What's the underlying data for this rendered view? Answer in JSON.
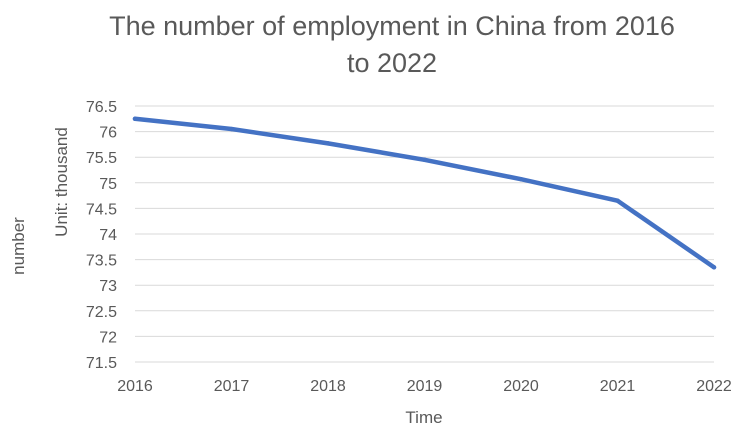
{
  "chart_data": {
    "type": "line",
    "title": "The number of employment in China from 2016 to 2022",
    "title_lines": [
      "The number of employment in China from 2016",
      "to 2022"
    ],
    "xlabel": "Time",
    "ylabel": "Unit: thousand",
    "side_label": "number",
    "categories": [
      "2016",
      "2017",
      "2018",
      "2019",
      "2020",
      "2021",
      "2022"
    ],
    "series": [
      {
        "values": [
          76.25,
          76.05,
          75.77,
          75.45,
          75.07,
          74.65,
          73.35
        ],
        "color": "#4472c4"
      }
    ],
    "ylim": [
      71.5,
      76.5
    ],
    "yticks": [
      "76.5",
      "76",
      "75.5",
      "75",
      "74.5",
      "74",
      "73.5",
      "73",
      "72.5",
      "72",
      "71.5"
    ],
    "grid": true,
    "legend": "none"
  }
}
